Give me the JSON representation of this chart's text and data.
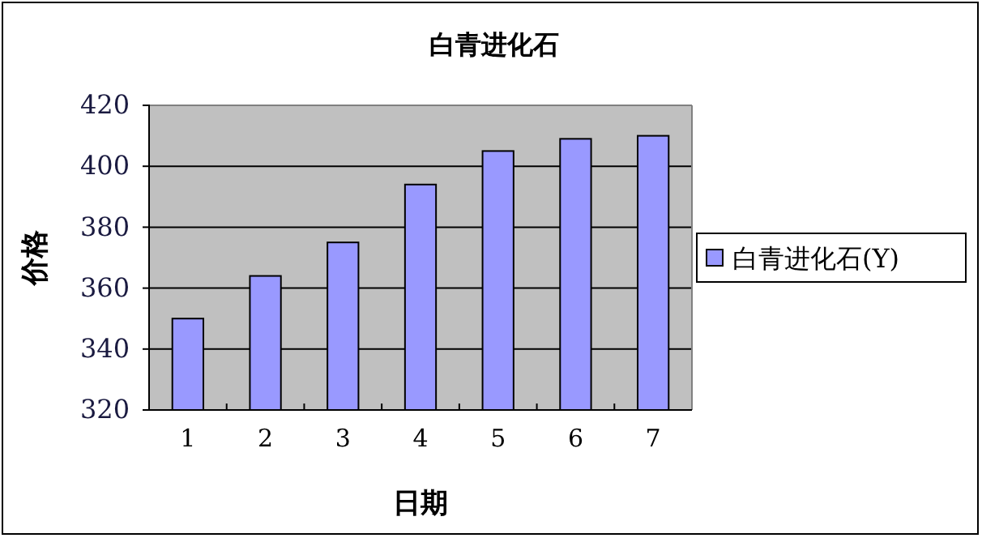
{
  "chart_data": {
    "type": "bar",
    "title": "白青进化石",
    "xlabel": "日期",
    "ylabel": "价格",
    "categories": [
      "1",
      "2",
      "3",
      "4",
      "5",
      "6",
      "7"
    ],
    "series": [
      {
        "name": "白青进化石(Y)",
        "color": "#9999ff",
        "values": [
          350,
          364,
          375,
          394,
          405,
          409,
          410
        ]
      }
    ],
    "ylim": [
      320,
      420
    ],
    "yticks": [
      320,
      340,
      360,
      380,
      400,
      420
    ],
    "grid": "y",
    "legend": "right"
  }
}
